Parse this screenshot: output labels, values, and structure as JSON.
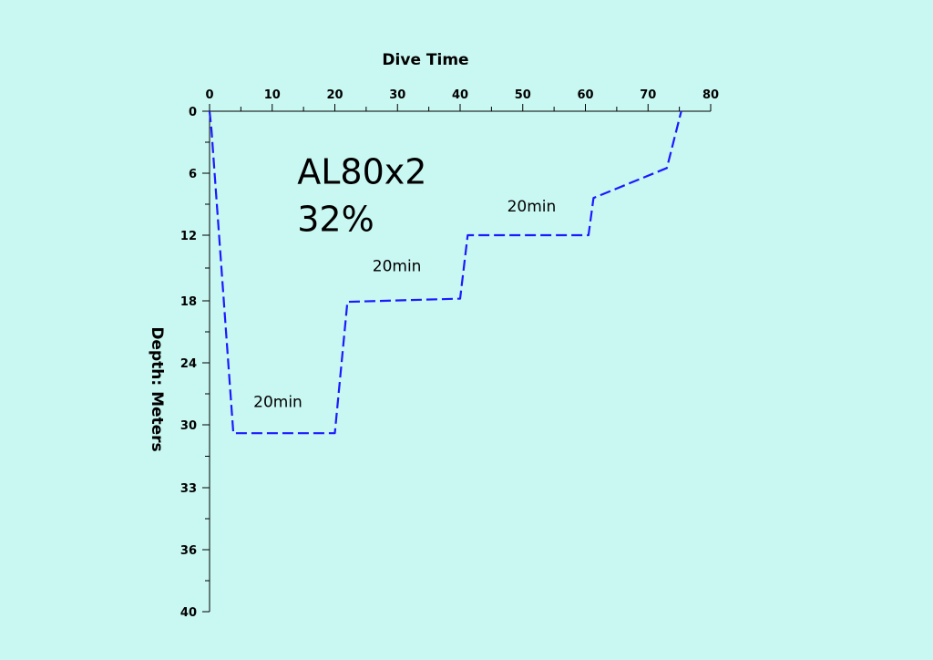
{
  "chart_data": {
    "type": "line",
    "xlabel": "Dive Time",
    "ylabel": "Depth: Meters",
    "x_ticks": [
      "0",
      "10",
      "20",
      "30",
      "40",
      "50",
      "60",
      "70",
      "80"
    ],
    "y_ticks": [
      "0",
      "6",
      "12",
      "18",
      "24",
      "30",
      "33",
      "36",
      "40"
    ],
    "xlim": [
      0,
      80
    ],
    "grid": false,
    "series": [
      {
        "color": "#1a1aff",
        "line_style": "dashed",
        "points": [
          {
            "x": 0,
            "y": 0
          },
          {
            "x": 0.3,
            "y": 1.8
          },
          {
            "x": 3.8,
            "y": 30.4
          },
          {
            "x": 20,
            "y": 30.4
          },
          {
            "x": 22,
            "y": 18.1
          },
          {
            "x": 40,
            "y": 17.8
          },
          {
            "x": 41.2,
            "y": 12
          },
          {
            "x": 60.5,
            "y": 12
          },
          {
            "x": 61.3,
            "y": 8.4
          },
          {
            "x": 73,
            "y": 5.5
          },
          {
            "x": 75.3,
            "y": 0
          }
        ]
      }
    ],
    "annotations": [
      {
        "text": "AL80x2",
        "x": 14,
        "y": 7
      },
      {
        "text": "32%",
        "x": 14,
        "y": 11.6
      },
      {
        "text": "20min",
        "x": 7,
        "y": 28.3
      },
      {
        "text": "20min",
        "x": 26,
        "y": 15.3
      },
      {
        "text": "20min",
        "x": 47.5,
        "y": 9.7
      }
    ]
  }
}
